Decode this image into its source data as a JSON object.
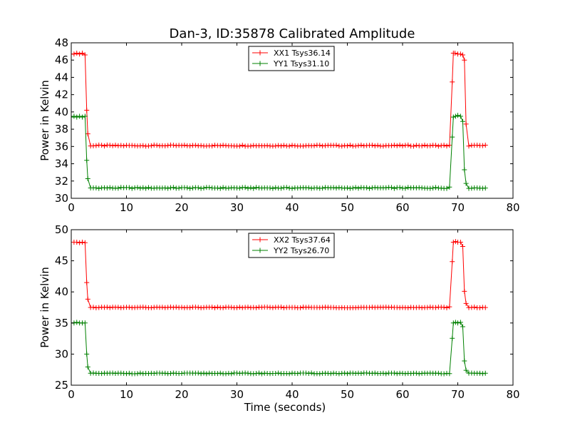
{
  "figure": {
    "title": "Dan-3, ID:35878 Calibrated Amplitude"
  },
  "chart_data": [
    {
      "type": "line",
      "title": "Dan-3, ID:35878 Calibrated Amplitude",
      "xlabel": "",
      "ylabel": "Power in Kelvin",
      "xlim": [
        0,
        80
      ],
      "ylim": [
        30,
        48
      ],
      "xticks": [
        0,
        10,
        20,
        30,
        40,
        50,
        60,
        70,
        80
      ],
      "yticks": [
        30,
        32,
        34,
        36,
        38,
        40,
        42,
        44,
        46,
        48
      ],
      "grid": false,
      "legend": "top-center",
      "x": {
        "start": 0,
        "end": 75,
        "step": 0.5
      },
      "series": [
        {
          "name": "XX1 Tsys36.14",
          "color": "#ff0000",
          "marker": "plus",
          "baseline": 36.1,
          "segments": [
            {
              "x": 0,
              "y": 46.7
            },
            {
              "x": 0.5,
              "y": 46.7
            },
            {
              "x": 1,
              "y": 46.8
            },
            {
              "x": 1.5,
              "y": 46.7
            },
            {
              "x": 2,
              "y": 46.8
            },
            {
              "x": 2.5,
              "y": 46.6
            },
            {
              "x": 2.8,
              "y": 40.2
            },
            {
              "x": 3.1,
              "y": 36.1
            },
            {
              "x": 68.5,
              "y": 36.1
            },
            {
              "x": 68.9,
              "y": 41.8
            },
            {
              "x": 69.2,
              "y": 46.8
            },
            {
              "x": 69.6,
              "y": 46.8
            },
            {
              "x": 70,
              "y": 46.7
            },
            {
              "x": 70.5,
              "y": 46.7
            },
            {
              "x": 70.9,
              "y": 46.6
            },
            {
              "x": 71.2,
              "y": 46.0
            },
            {
              "x": 71.5,
              "y": 38.6
            },
            {
              "x": 71.9,
              "y": 36.1
            },
            {
              "x": 75,
              "y": 36.1
            }
          ]
        },
        {
          "name": "YY1 Tsys31.10",
          "color": "#008000",
          "marker": "plus",
          "baseline": 31.2,
          "segments": [
            {
              "x": 0,
              "y": 39.4
            },
            {
              "x": 0.5,
              "y": 39.5
            },
            {
              "x": 1,
              "y": 39.4
            },
            {
              "x": 1.5,
              "y": 39.5
            },
            {
              "x": 2,
              "y": 39.4
            },
            {
              "x": 2.5,
              "y": 39.5
            },
            {
              "x": 2.8,
              "y": 34.4
            },
            {
              "x": 3.1,
              "y": 31.2
            },
            {
              "x": 68.5,
              "y": 31.3
            },
            {
              "x": 69.2,
              "y": 39.4
            },
            {
              "x": 69.6,
              "y": 39.5
            },
            {
              "x": 70,
              "y": 39.6
            },
            {
              "x": 70.5,
              "y": 39.5
            },
            {
              "x": 70.9,
              "y": 38.9
            },
            {
              "x": 71.2,
              "y": 33.3
            },
            {
              "x": 71.6,
              "y": 31.2
            },
            {
              "x": 75,
              "y": 31.2
            }
          ]
        }
      ]
    },
    {
      "type": "line",
      "title": "",
      "xlabel": "Time (seconds)",
      "ylabel": "Power in Kelvin",
      "xlim": [
        0,
        80
      ],
      "ylim": [
        25,
        50
      ],
      "xticks": [
        0,
        10,
        20,
        30,
        40,
        50,
        60,
        70,
        80
      ],
      "yticks": [
        25,
        30,
        35,
        40,
        45,
        50
      ],
      "grid": false,
      "legend": "top-center",
      "x": {
        "start": 0,
        "end": 75,
        "step": 0.5
      },
      "series": [
        {
          "name": "XX2 Tsys37.64",
          "color": "#ff0000",
          "marker": "plus",
          "baseline": 37.5,
          "segments": [
            {
              "x": 0,
              "y": 48.0
            },
            {
              "x": 0.5,
              "y": 48.0
            },
            {
              "x": 1,
              "y": 48.0
            },
            {
              "x": 1.5,
              "y": 47.9
            },
            {
              "x": 2,
              "y": 48.0
            },
            {
              "x": 2.5,
              "y": 47.9
            },
            {
              "x": 2.8,
              "y": 41.5
            },
            {
              "x": 3.1,
              "y": 37.5
            },
            {
              "x": 68.5,
              "y": 37.6
            },
            {
              "x": 68.9,
              "y": 43.3
            },
            {
              "x": 69.2,
              "y": 48.0
            },
            {
              "x": 69.6,
              "y": 48.1
            },
            {
              "x": 70,
              "y": 48.0
            },
            {
              "x": 70.5,
              "y": 48.0
            },
            {
              "x": 70.9,
              "y": 47.3
            },
            {
              "x": 71.2,
              "y": 40.1
            },
            {
              "x": 71.6,
              "y": 37.5
            },
            {
              "x": 75,
              "y": 37.5
            }
          ]
        },
        {
          "name": "YY2 Tsys26.70",
          "color": "#008000",
          "marker": "plus",
          "baseline": 26.9,
          "segments": [
            {
              "x": 0,
              "y": 35.0
            },
            {
              "x": 0.5,
              "y": 35.0
            },
            {
              "x": 1,
              "y": 35.1
            },
            {
              "x": 1.5,
              "y": 35.0
            },
            {
              "x": 2,
              "y": 35.0
            },
            {
              "x": 2.5,
              "y": 35.0
            },
            {
              "x": 2.8,
              "y": 30.0
            },
            {
              "x": 3.1,
              "y": 26.9
            },
            {
              "x": 68.5,
              "y": 26.9
            },
            {
              "x": 68.9,
              "y": 31.3
            },
            {
              "x": 69.2,
              "y": 35.0
            },
            {
              "x": 69.6,
              "y": 35.1
            },
            {
              "x": 70,
              "y": 35.0
            },
            {
              "x": 70.5,
              "y": 35.1
            },
            {
              "x": 70.9,
              "y": 34.4
            },
            {
              "x": 71.2,
              "y": 28.9
            },
            {
              "x": 71.6,
              "y": 26.9
            },
            {
              "x": 75,
              "y": 26.9
            }
          ]
        }
      ]
    }
  ]
}
